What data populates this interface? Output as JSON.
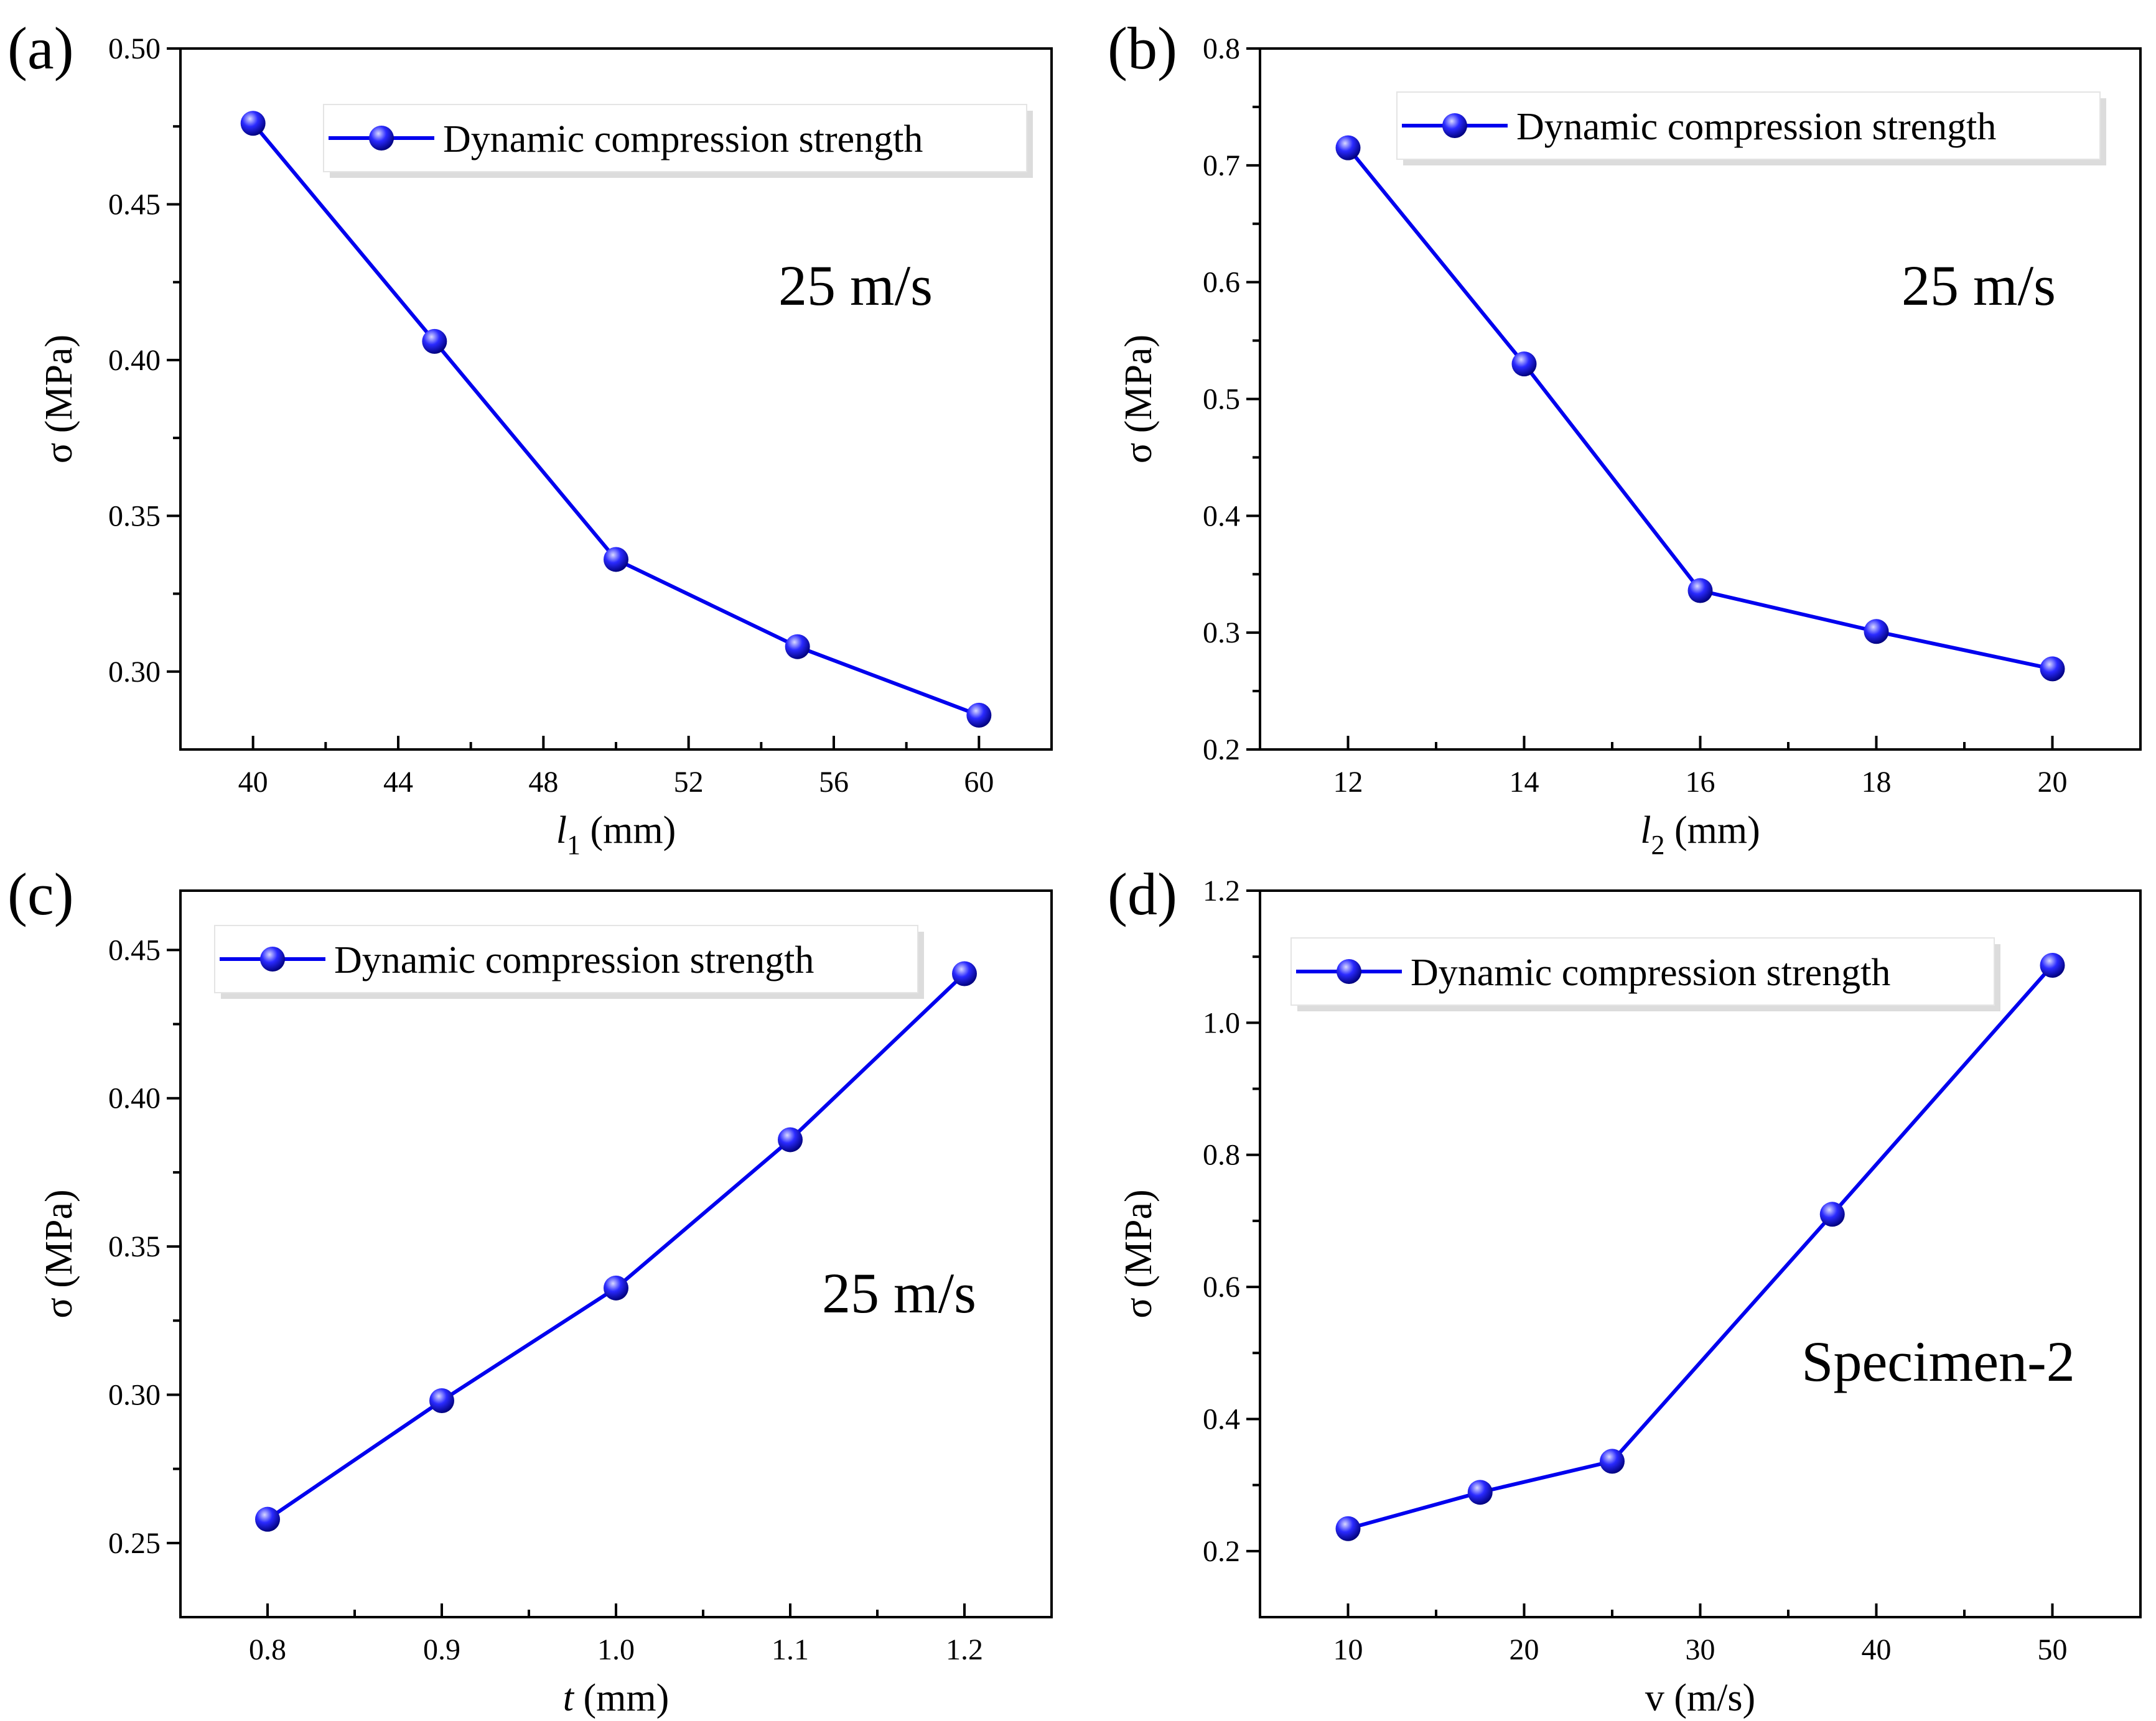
{
  "chart_data": [
    {
      "type": "line",
      "panel_label": "(a)",
      "xlabel_var": "l",
      "xlabel_sub": "1",
      "xlabel_unit": " (mm)",
      "ylabel": "σ (MPa)",
      "xlim": [
        38,
        62
      ],
      "ylim": [
        0.275,
        0.5
      ],
      "xticks": [
        40,
        44,
        48,
        52,
        56,
        60
      ],
      "xtick_labels": [
        "40",
        "44",
        "48",
        "52",
        "56",
        "60"
      ],
      "yticks": [
        0.3,
        0.35,
        0.4,
        0.45,
        0.5
      ],
      "ytick_labels": [
        "0.30",
        "0.35",
        "0.40",
        "0.45",
        "0.50"
      ],
      "x": [
        40,
        45,
        50,
        55,
        60
      ],
      "values": [
        0.476,
        0.406,
        0.336,
        0.308,
        0.286
      ],
      "legend": "Dynamic compression strength",
      "annotation": "25 m/s"
    },
    {
      "type": "line",
      "panel_label": "(b)",
      "xlabel_var": "l",
      "xlabel_sub": "2",
      "xlabel_unit": " (mm)",
      "ylabel": "σ (MPa)",
      "xlim": [
        11,
        21
      ],
      "ylim": [
        0.2,
        0.8
      ],
      "xticks": [
        12,
        14,
        16,
        18,
        20
      ],
      "xtick_labels": [
        "12",
        "14",
        "16",
        "18",
        "20"
      ],
      "yticks": [
        0.2,
        0.3,
        0.4,
        0.5,
        0.6,
        0.7,
        0.8
      ],
      "ytick_labels": [
        "0.2",
        "0.3",
        "0.4",
        "0.5",
        "0.6",
        "0.7",
        "0.8"
      ],
      "x": [
        12,
        14,
        16,
        18,
        20
      ],
      "values": [
        0.715,
        0.53,
        0.336,
        0.301,
        0.269
      ],
      "legend": "Dynamic compression strength",
      "annotation": "25 m/s"
    },
    {
      "type": "line",
      "panel_label": "(c)",
      "xlabel_var": "t",
      "xlabel_sub": "",
      "xlabel_unit": " (mm)",
      "ylabel": "σ (MPa)",
      "xlim": [
        0.75,
        1.25
      ],
      "ylim": [
        0.225,
        0.47
      ],
      "xticks": [
        0.8,
        0.9,
        1.0,
        1.1,
        1.2
      ],
      "xtick_labels": [
        "0.8",
        "0.9",
        "1.0",
        "1.1",
        "1.2"
      ],
      "yticks": [
        0.25,
        0.3,
        0.35,
        0.4,
        0.45
      ],
      "ytick_labels": [
        "0.25",
        "0.30",
        "0.35",
        "0.40",
        "0.45"
      ],
      "x": [
        0.8,
        0.9,
        1.0,
        1.1,
        1.2
      ],
      "values": [
        0.258,
        0.298,
        0.336,
        0.386,
        0.442
      ],
      "legend": "Dynamic compression strength",
      "annotation": "25 m/s"
    },
    {
      "type": "line",
      "panel_label": "(d)",
      "xlabel_var": "",
      "xlabel_sub": "",
      "xlabel_unit": "v (m/s)",
      "ylabel": "σ (MPa)",
      "xlim": [
        5,
        55
      ],
      "ylim": [
        0.1,
        1.2
      ],
      "xticks": [
        10,
        20,
        30,
        40,
        50
      ],
      "xtick_labels": [
        "10",
        "20",
        "30",
        "40",
        "50"
      ],
      "yticks": [
        0.2,
        0.4,
        0.6,
        0.8,
        1.0,
        1.2
      ],
      "ytick_labels": [
        "0.2",
        "0.4",
        "0.6",
        "0.8",
        "1.0",
        "1.2"
      ],
      "x": [
        10,
        17.5,
        25,
        37.5,
        50
      ],
      "values": [
        0.234,
        0.289,
        0.336,
        0.71,
        1.087
      ],
      "legend": "Dynamic compression strength",
      "annotation": "Specimen-2"
    }
  ],
  "colors": {
    "series": "#0000ee",
    "marker_light": "#d8d8ff",
    "marker_mid": "#2a2aff",
    "marker_dark": "#00007a"
  }
}
